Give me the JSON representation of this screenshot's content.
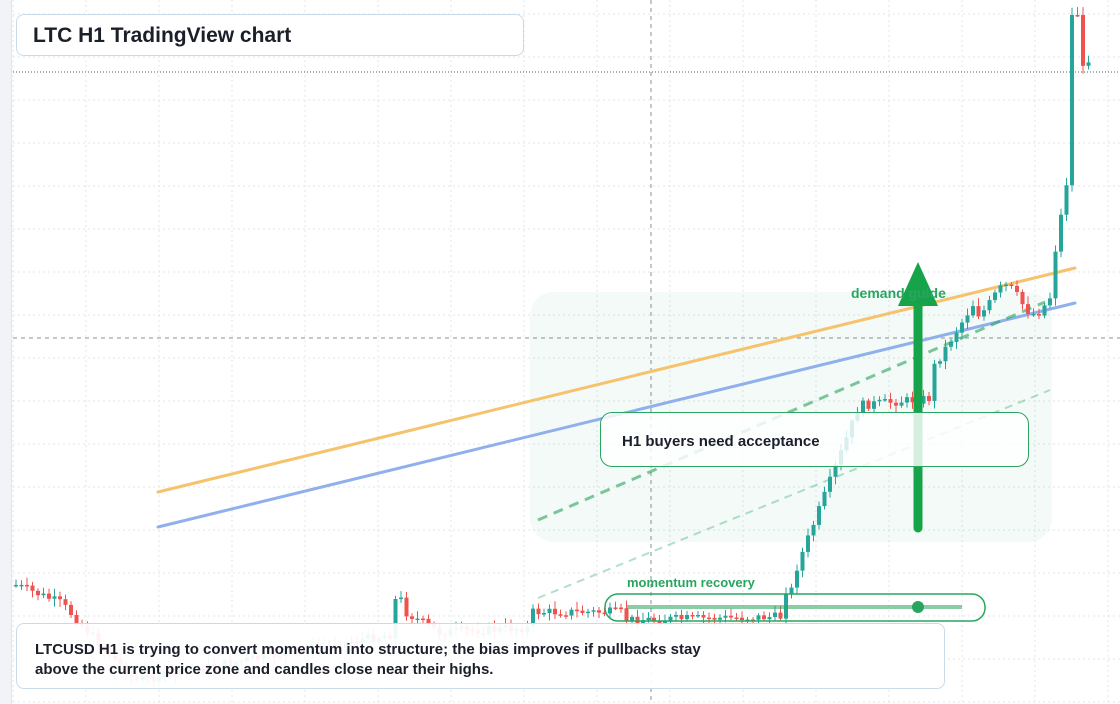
{
  "header": {
    "title": "LTC H1 TradingView chart"
  },
  "note": {
    "line1": "LTCUSD H1 is trying to convert momentum into structure; the bias improves if pullbacks stay",
    "line2": "above the current price zone and candles close near their highs."
  },
  "callout": {
    "text": "H1 buyers need acceptance"
  },
  "labels": {
    "demand": "demand guide",
    "momentum": "momentum recovery"
  },
  "colors": {
    "up": "#26a69a",
    "down": "#ef5350",
    "zone": "#2aa55f",
    "arrow": "#17a34a",
    "ma_fast": "#f6c26b",
    "ma_slow": "#8fb0ec",
    "grid": "#e3e6ea"
  },
  "chart_data": {
    "type": "candlestick",
    "title": "LTC H1 TradingView chart",
    "symbol": "LTCUSD",
    "timeframe": "H1",
    "xlabel": "",
    "ylabel": "",
    "grid": true,
    "indicators": [
      {
        "name": "",
        "color": "#f6c26b",
        "start": [
          0.0,
          0.7
        ],
        "end": [
          1.0,
          0.72
        ]
      },
      {
        "name": "",
        "color": "#8fb0ec",
        "start": [
          0.0,
          0.65
        ],
        "end": [
          1.0,
          0.78
        ]
      }
    ],
    "annotations": [
      "demand guide",
      "momentum recovery",
      "H1 buyers need acceptance"
    ],
    "candles_summary": "A long sideways range with a late strong upswing and a final vertical spike to the top of the chart."
  }
}
